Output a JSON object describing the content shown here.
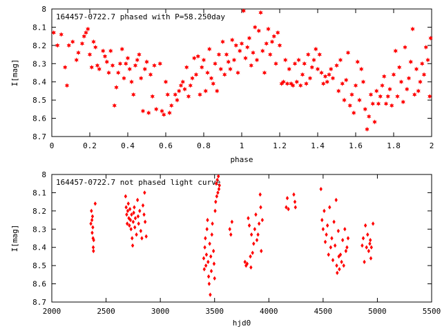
{
  "chart_data": [
    {
      "type": "scatter",
      "title": "164457-0722.7 phased with P=58.250day",
      "xlabel": "phase",
      "ylabel": "I[mag]",
      "xlim": [
        0,
        2
      ],
      "ylim": [
        8.7,
        8.0
      ],
      "y_inverted": true,
      "x_ticks": [
        0,
        0.2,
        0.4,
        0.6,
        0.8,
        1,
        1.2,
        1.4,
        1.6,
        1.8,
        2
      ],
      "x_tick_labels": [
        "0",
        "0.2",
        "0.4",
        "0.6",
        "0.8",
        "1",
        "1.2",
        "1.4",
        "1.6",
        "1.8",
        "2"
      ],
      "y_ticks": [
        8,
        8.1,
        8.2,
        8.3,
        8.4,
        8.5,
        8.6,
        8.7
      ],
      "y_tick_labels": [
        "8",
        "8.1",
        "8.2",
        "8.3",
        "8.4",
        "8.5",
        "8.6",
        "8.7"
      ],
      "grid": false,
      "marker": "star",
      "color": "#ff0000",
      "points": [
        [
          0.01,
          8.13
        ],
        [
          0.03,
          8.2
        ],
        [
          0.05,
          8.14
        ],
        [
          0.07,
          8.32
        ],
        [
          0.08,
          8.42
        ],
        [
          0.09,
          8.2
        ],
        [
          0.11,
          8.18
        ],
        [
          0.13,
          8.28
        ],
        [
          0.14,
          8.24
        ],
        [
          0.16,
          8.19
        ],
        [
          0.17,
          8.15
        ],
        [
          0.18,
          8.13
        ],
        [
          0.19,
          8.11
        ],
        [
          0.2,
          8.25
        ],
        [
          0.21,
          8.32
        ],
        [
          0.22,
          8.18
        ],
        [
          0.23,
          8.21
        ],
        [
          0.24,
          8.31
        ],
        [
          0.25,
          8.33
        ],
        [
          0.27,
          8.23
        ],
        [
          0.28,
          8.26
        ],
        [
          0.29,
          8.29
        ],
        [
          0.3,
          8.35
        ],
        [
          0.31,
          8.23
        ],
        [
          0.32,
          8.31
        ],
        [
          0.33,
          8.53
        ],
        [
          0.34,
          8.43
        ],
        [
          0.35,
          8.35
        ],
        [
          0.36,
          8.3
        ],
        [
          0.37,
          8.22
        ],
        [
          0.38,
          8.38
        ],
        [
          0.39,
          8.3
        ],
        [
          0.4,
          8.27
        ],
        [
          0.41,
          8.33
        ],
        [
          0.42,
          8.4
        ],
        [
          0.43,
          8.47
        ],
        [
          0.44,
          8.31
        ],
        [
          0.45,
          8.28
        ],
        [
          0.46,
          8.25
        ],
        [
          0.47,
          8.38
        ],
        [
          0.48,
          8.56
        ],
        [
          0.49,
          8.33
        ],
        [
          0.5,
          8.29
        ],
        [
          0.51,
          8.57
        ],
        [
          0.52,
          8.36
        ],
        [
          0.53,
          8.48
        ],
        [
          0.54,
          8.31
        ],
        [
          0.55,
          8.55
        ],
        [
          0.57,
          8.3
        ],
        [
          0.58,
          8.56
        ],
        [
          0.59,
          8.58
        ],
        [
          0.6,
          8.4
        ],
        [
          0.61,
          8.47
        ],
        [
          0.62,
          8.57
        ],
        [
          0.63,
          8.53
        ],
        [
          0.65,
          8.47
        ],
        [
          0.66,
          8.5
        ],
        [
          0.67,
          8.45
        ],
        [
          0.68,
          8.42
        ],
        [
          0.69,
          8.4
        ],
        [
          0.7,
          8.44
        ],
        [
          0.71,
          8.32
        ],
        [
          0.72,
          8.48
        ],
        [
          0.73,
          8.42
        ],
        [
          0.74,
          8.38
        ],
        [
          0.75,
          8.27
        ],
        [
          0.76,
          8.36
        ],
        [
          0.77,
          8.26
        ],
        [
          0.78,
          8.47
        ],
        [
          0.79,
          8.32
        ],
        [
          0.8,
          8.28
        ],
        [
          0.81,
          8.45
        ],
        [
          0.82,
          8.35
        ],
        [
          0.83,
          8.22
        ],
        [
          0.84,
          8.38
        ],
        [
          0.85,
          8.41
        ],
        [
          0.86,
          8.3
        ],
        [
          0.87,
          8.45
        ],
        [
          0.88,
          8.25
        ],
        [
          0.89,
          8.33
        ],
        [
          0.9,
          8.18
        ],
        [
          0.91,
          8.36
        ],
        [
          0.92,
          8.25
        ],
        [
          0.93,
          8.29
        ],
        [
          0.94,
          8.33
        ],
        [
          0.95,
          8.17
        ],
        [
          0.96,
          8.28
        ],
        [
          0.97,
          8.2
        ],
        [
          0.98,
          8.35
        ],
        [
          0.99,
          8.23
        ],
        [
          1.0,
          8.19
        ],
        [
          1.01,
          8.01
        ],
        [
          1.02,
          8.27
        ],
        [
          1.03,
          8.21
        ],
        [
          1.04,
          8.16
        ],
        [
          1.05,
          8.31
        ],
        [
          1.06,
          8.24
        ],
        [
          1.07,
          8.1
        ],
        [
          1.08,
          8.28
        ],
        [
          1.09,
          8.12
        ],
        [
          1.1,
          8.02
        ],
        [
          1.11,
          8.23
        ],
        [
          1.12,
          8.35
        ],
        [
          1.13,
          8.19
        ],
        [
          1.14,
          8.11
        ],
        [
          1.15,
          8.25
        ],
        [
          1.16,
          8.18
        ],
        [
          1.17,
          8.15
        ],
        [
          1.18,
          8.3
        ],
        [
          1.19,
          8.13
        ],
        [
          1.2,
          8.2
        ],
        [
          1.21,
          8.41
        ],
        [
          1.22,
          8.4
        ],
        [
          1.23,
          8.28
        ],
        [
          1.24,
          8.41
        ],
        [
          1.25,
          8.33
        ],
        [
          1.26,
          8.41
        ],
        [
          1.27,
          8.42
        ],
        [
          1.28,
          8.3
        ],
        [
          1.29,
          8.4
        ],
        [
          1.3,
          8.28
        ],
        [
          1.31,
          8.42
        ],
        [
          1.32,
          8.36
        ],
        [
          1.33,
          8.3
        ],
        [
          1.34,
          8.41
        ],
        [
          1.35,
          8.25
        ],
        [
          1.36,
          8.38
        ],
        [
          1.37,
          8.32
        ],
        [
          1.38,
          8.28
        ],
        [
          1.39,
          8.22
        ],
        [
          1.4,
          8.33
        ],
        [
          1.41,
          8.25
        ],
        [
          1.42,
          8.35
        ],
        [
          1.43,
          8.41
        ],
        [
          1.44,
          8.37
        ],
        [
          1.45,
          8.4
        ],
        [
          1.46,
          8.36
        ],
        [
          1.47,
          8.33
        ],
        [
          1.48,
          8.38
        ],
        [
          1.5,
          8.31
        ],
        [
          1.51,
          8.45
        ],
        [
          1.52,
          8.28
        ],
        [
          1.53,
          8.41
        ],
        [
          1.54,
          8.5
        ],
        [
          1.55,
          8.39
        ],
        [
          1.56,
          8.24
        ],
        [
          1.57,
          8.53
        ],
        [
          1.58,
          8.47
        ],
        [
          1.59,
          8.57
        ],
        [
          1.6,
          8.42
        ],
        [
          1.61,
          8.29
        ],
        [
          1.62,
          8.5
        ],
        [
          1.63,
          8.33
        ],
        [
          1.64,
          8.4
        ],
        [
          1.65,
          8.55
        ],
        [
          1.66,
          8.66
        ],
        [
          1.67,
          8.59
        ],
        [
          1.68,
          8.47
        ],
        [
          1.69,
          8.52
        ],
        [
          1.7,
          8.62
        ],
        [
          1.71,
          8.45
        ],
        [
          1.72,
          8.52
        ],
        [
          1.73,
          8.48
        ],
        [
          1.74,
          8.42
        ],
        [
          1.75,
          8.37
        ],
        [
          1.76,
          8.52
        ],
        [
          1.77,
          8.48
        ],
        [
          1.78,
          8.44
        ],
        [
          1.79,
          8.53
        ],
        [
          1.8,
          8.36
        ],
        [
          1.81,
          8.23
        ],
        [
          1.82,
          8.48
        ],
        [
          1.83,
          8.32
        ],
        [
          1.84,
          8.4
        ],
        [
          1.85,
          8.51
        ],
        [
          1.86,
          8.21
        ],
        [
          1.87,
          8.44
        ],
        [
          1.88,
          8.38
        ],
        [
          1.89,
          8.29
        ],
        [
          1.9,
          8.11
        ],
        [
          1.91,
          8.47
        ],
        [
          1.92,
          8.33
        ],
        [
          1.93,
          8.45
        ],
        [
          1.94,
          8.4
        ],
        [
          1.95,
          8.3
        ],
        [
          1.96,
          8.36
        ],
        [
          1.97,
          8.21
        ],
        [
          1.98,
          8.28
        ],
        [
          1.99,
          8.48
        ],
        [
          1.995,
          8.16
        ]
      ]
    },
    {
      "type": "scatter",
      "title": "164457-0722.7 not phased light curve",
      "xlabel": "hjd0",
      "ylabel": "I[mag]",
      "xlim": [
        2000,
        5500
      ],
      "ylim": [
        8.7,
        8.0
      ],
      "y_inverted": true,
      "x_ticks": [
        2000,
        2500,
        3000,
        3500,
        4000,
        4500,
        5000,
        5500
      ],
      "x_tick_labels": [
        "2000",
        "2500",
        "3000",
        "3500",
        "4000",
        "4500",
        "5000",
        "5500"
      ],
      "y_ticks": [
        8,
        8.1,
        8.2,
        8.3,
        8.4,
        8.5,
        8.6,
        8.7
      ],
      "y_tick_labels": [
        "8",
        "8.1",
        "8.2",
        "8.3",
        "8.4",
        "8.5",
        "8.6",
        "8.7"
      ],
      "grid": false,
      "marker": "diamond",
      "color": "#ff0000",
      "points": [
        [
          2360,
          8.27
        ],
        [
          2365,
          8.2
        ],
        [
          2370,
          8.25
        ],
        [
          2372,
          8.32
        ],
        [
          2375,
          8.23
        ],
        [
          2378,
          8.29
        ],
        [
          2380,
          8.35
        ],
        [
          2382,
          8.4
        ],
        [
          2384,
          8.42
        ],
        [
          2386,
          8.36
        ],
        [
          2400,
          8.16
        ],
        [
          2680,
          8.12
        ],
        [
          2685,
          8.18
        ],
        [
          2690,
          8.22
        ],
        [
          2695,
          8.27
        ],
        [
          2700,
          8.2
        ],
        [
          2705,
          8.16
        ],
        [
          2710,
          8.24
        ],
        [
          2715,
          8.28
        ],
        [
          2720,
          8.19
        ],
        [
          2725,
          8.25
        ],
        [
          2730,
          8.3
        ],
        [
          2735,
          8.22
        ],
        [
          2740,
          8.35
        ],
        [
          2745,
          8.39
        ],
        [
          2750,
          8.26
        ],
        [
          2755,
          8.21
        ],
        [
          2760,
          8.18
        ],
        [
          2765,
          8.29
        ],
        [
          2770,
          8.24
        ],
        [
          2780,
          8.33
        ],
        [
          2790,
          8.14
        ],
        [
          2795,
          8.23
        ],
        [
          2800,
          8.27
        ],
        [
          2810,
          8.2
        ],
        [
          2820,
          8.31
        ],
        [
          2830,
          8.35
        ],
        [
          2840,
          8.17
        ],
        [
          2850,
          8.22
        ],
        [
          2855,
          8.1
        ],
        [
          2860,
          8.26
        ],
        [
          2870,
          8.34
        ],
        [
          3400,
          8.46
        ],
        [
          3405,
          8.52
        ],
        [
          3410,
          8.4
        ],
        [
          3415,
          8.35
        ],
        [
          3420,
          8.5
        ],
        [
          3425,
          8.44
        ],
        [
          3430,
          8.3
        ],
        [
          3435,
          8.25
        ],
        [
          3440,
          8.48
        ],
        [
          3445,
          8.56
        ],
        [
          3450,
          8.6
        ],
        [
          3455,
          8.38
        ],
        [
          3460,
          8.66
        ],
        [
          3465,
          8.45
        ],
        [
          3470,
          8.53
        ],
        [
          3475,
          8.33
        ],
        [
          3480,
          8.27
        ],
        [
          3490,
          8.42
        ],
        [
          3495,
          8.49
        ],
        [
          3500,
          8.57
        ],
        [
          3505,
          8.2
        ],
        [
          3510,
          8.15
        ],
        [
          3515,
          8.05
        ],
        [
          3520,
          8.12
        ],
        [
          3525,
          8.03
        ],
        [
          3530,
          8.1
        ],
        [
          3535,
          8.01
        ],
        [
          3540,
          8.08
        ],
        [
          3545,
          8.06
        ],
        [
          3640,
          8.3
        ],
        [
          3650,
          8.33
        ],
        [
          3660,
          8.26
        ],
        [
          3780,
          8.48
        ],
        [
          3790,
          8.5
        ],
        [
          3800,
          8.49
        ],
        [
          3810,
          8.24
        ],
        [
          3820,
          8.28
        ],
        [
          3830,
          8.45
        ],
        [
          3835,
          8.51
        ],
        [
          3840,
          8.33
        ],
        [
          3850,
          8.43
        ],
        [
          3860,
          8.38
        ],
        [
          3870,
          8.3
        ],
        [
          3880,
          8.22
        ],
        [
          3890,
          8.36
        ],
        [
          3900,
          8.33
        ],
        [
          3910,
          8.27
        ],
        [
          3920,
          8.11
        ],
        [
          3925,
          8.18
        ],
        [
          3930,
          8.42
        ],
        [
          3940,
          8.25
        ],
        [
          4160,
          8.18
        ],
        [
          4170,
          8.13
        ],
        [
          4180,
          8.19
        ],
        [
          4230,
          8.11
        ],
        [
          4240,
          8.15
        ],
        [
          4245,
          8.18
        ],
        [
          4480,
          8.08
        ],
        [
          4490,
          8.25
        ],
        [
          4500,
          8.3
        ],
        [
          4510,
          8.2
        ],
        [
          4520,
          8.37
        ],
        [
          4530,
          8.33
        ],
        [
          4540,
          8.28
        ],
        [
          4550,
          8.44
        ],
        [
          4560,
          8.18
        ],
        [
          4570,
          8.4
        ],
        [
          4580,
          8.35
        ],
        [
          4590,
          8.47
        ],
        [
          4600,
          8.26
        ],
        [
          4610,
          8.39
        ],
        [
          4620,
          8.14
        ],
        [
          4625,
          8.5
        ],
        [
          4630,
          8.54
        ],
        [
          4640,
          8.31
        ],
        [
          4645,
          8.45
        ],
        [
          4650,
          8.52
        ],
        [
          4660,
          8.44
        ],
        [
          4670,
          8.48
        ],
        [
          4680,
          8.36
        ],
        [
          4690,
          8.5
        ],
        [
          4700,
          8.3
        ],
        [
          4710,
          8.42
        ],
        [
          4720,
          8.4
        ],
        [
          4730,
          8.35
        ],
        [
          4860,
          8.39
        ],
        [
          4870,
          8.35
        ],
        [
          4880,
          8.48
        ],
        [
          4890,
          8.28
        ],
        [
          4900,
          8.4
        ],
        [
          4910,
          8.33
        ],
        [
          4920,
          8.42
        ],
        [
          4930,
          8.38
        ],
        [
          4935,
          8.36
        ],
        [
          4940,
          8.46
        ],
        [
          4945,
          8.4
        ],
        [
          4960,
          8.27
        ]
      ]
    }
  ]
}
